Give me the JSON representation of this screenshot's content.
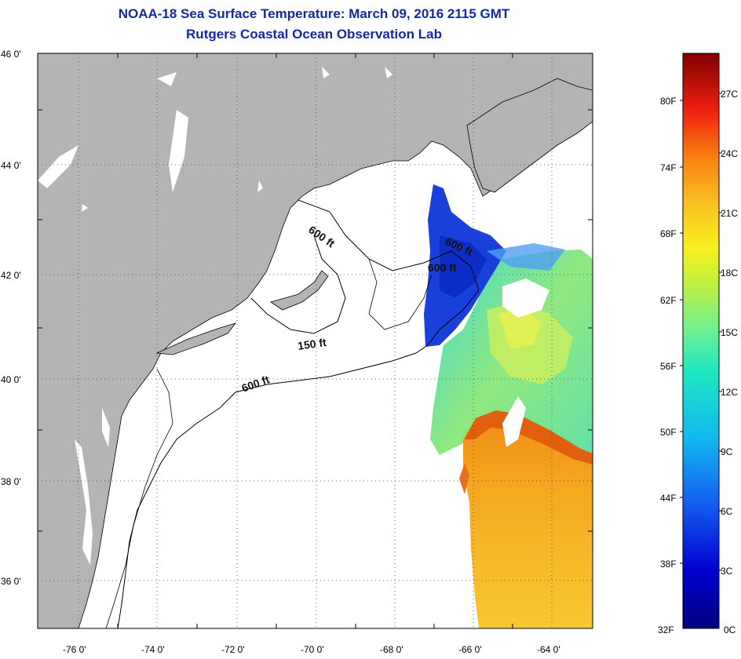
{
  "title": "NOAA-18 Sea Surface Temperature:  March 09, 2016 2115 GMT",
  "subtitle": "Rutgers Coastal Ocean Observation Lab",
  "lat_labels": [
    "46 0'",
    "44 0'",
    "42 0'",
    "40 0'",
    "38 0'",
    "36 0'"
  ],
  "lon_labels": [
    "-76 0'",
    "-74 0'",
    "-72 0'",
    "-70 0'",
    "-68 0'",
    "-66 0'",
    "-64 0'"
  ],
  "contour_labels": [
    "600 ft",
    "600 ft",
    "600 ft",
    "150 ft",
    "600 ft"
  ],
  "colorbar": {
    "fahrenheit": [
      "80F",
      "74F",
      "68F",
      "62F",
      "56F",
      "50F",
      "44F",
      "38F",
      "32F"
    ],
    "celsius": [
      "27C",
      "24C",
      "21C",
      "18C",
      "15C",
      "12C",
      "9C",
      "6C",
      "3C",
      "0C"
    ]
  },
  "colors": {
    "title": "#1428a0",
    "land": "#b4b4b4",
    "ocean_nodata": "#ffffff",
    "sst_cold": "#1a3ad8",
    "sst_mid": "#7ee0a0",
    "sst_warm": "#f0a020",
    "sst_front": "#e06010"
  }
}
